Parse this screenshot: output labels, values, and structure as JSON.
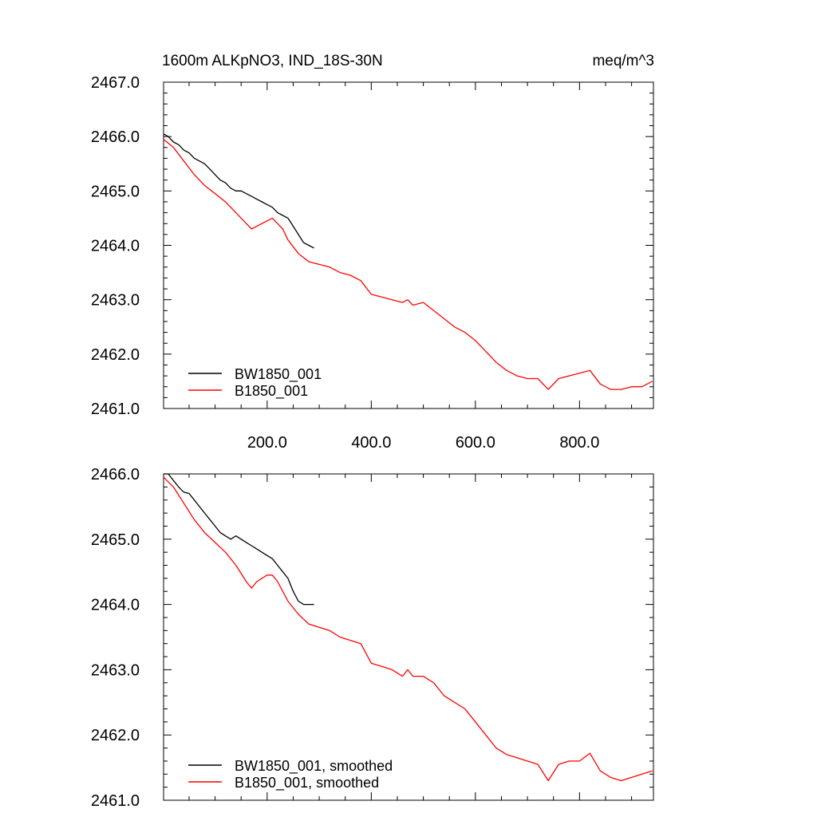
{
  "header": {
    "left": "1600m ALKpNO3, IND_18S-30N",
    "right": "meq/m^3"
  },
  "colors": {
    "bw": "#000000",
    "b": "#ff0000"
  },
  "chart_data": [
    {
      "type": "line",
      "title": "1600m ALKpNO3, IND_18S-30N",
      "units": "meq/m^3",
      "xlim": [
        1,
        942
      ],
      "ylim": [
        2461.0,
        2467.0
      ],
      "xticks": [
        200,
        400,
        600,
        800
      ],
      "xtick_labels": [
        "200.0",
        "400.0",
        "600.0",
        "800.0"
      ],
      "yticks": [
        2461,
        2462,
        2463,
        2464,
        2465,
        2466,
        2467
      ],
      "ytick_labels": [
        "2461.0",
        "2462.0",
        "2463.0",
        "2464.0",
        "2465.0",
        "2466.0",
        "2467.0"
      ],
      "legend_location": "bottom-left",
      "series": [
        {
          "name": "BW1850_001",
          "color": "#000000",
          "x": [
            1,
            10,
            20,
            30,
            40,
            50,
            60,
            70,
            80,
            90,
            100,
            110,
            120,
            130,
            140,
            150,
            160,
            170,
            180,
            190,
            200,
            210,
            220,
            230,
            240,
            250,
            260,
            270,
            280,
            290
          ],
          "y": [
            2466.05,
            2466.0,
            2465.9,
            2465.85,
            2465.75,
            2465.7,
            2465.6,
            2465.55,
            2465.5,
            2465.4,
            2465.3,
            2465.2,
            2465.15,
            2465.05,
            2465.0,
            2465.0,
            2464.95,
            2464.9,
            2464.85,
            2464.8,
            2464.75,
            2464.7,
            2464.6,
            2464.55,
            2464.5,
            2464.35,
            2464.2,
            2464.05,
            2464.0,
            2463.95
          ]
        },
        {
          "name": "B1850_001",
          "color": "#ff0000",
          "x": [
            1,
            20,
            40,
            60,
            80,
            100,
            120,
            140,
            160,
            170,
            180,
            190,
            200,
            210,
            220,
            230,
            240,
            260,
            280,
            300,
            320,
            340,
            360,
            380,
            400,
            420,
            440,
            460,
            470,
            480,
            500,
            520,
            540,
            560,
            580,
            600,
            620,
            640,
            660,
            680,
            700,
            720,
            740,
            760,
            780,
            800,
            820,
            840,
            860,
            880,
            900,
            920,
            940
          ],
          "y": [
            2465.95,
            2465.8,
            2465.55,
            2465.3,
            2465.1,
            2464.95,
            2464.8,
            2464.6,
            2464.4,
            2464.3,
            2464.35,
            2464.4,
            2464.45,
            2464.5,
            2464.4,
            2464.3,
            2464.1,
            2463.85,
            2463.7,
            2463.65,
            2463.6,
            2463.5,
            2463.45,
            2463.35,
            2463.1,
            2463.05,
            2463.0,
            2462.95,
            2463.0,
            2462.9,
            2462.95,
            2462.8,
            2462.65,
            2462.5,
            2462.4,
            2462.25,
            2462.05,
            2461.85,
            2461.7,
            2461.6,
            2461.55,
            2461.55,
            2461.35,
            2461.55,
            2461.6,
            2461.65,
            2461.7,
            2461.45,
            2461.35,
            2461.35,
            2461.4,
            2461.4,
            2461.5
          ]
        }
      ]
    },
    {
      "type": "line",
      "title": "",
      "xlim": [
        1,
        942
      ],
      "ylim": [
        2461.0,
        2466.0
      ],
      "xticks": [
        200,
        400,
        600,
        800
      ],
      "xtick_labels": [],
      "yticks": [
        2461,
        2462,
        2463,
        2464,
        2465,
        2466
      ],
      "ytick_labels": [
        "2461.0",
        "2462.0",
        "2463.0",
        "2464.0",
        "2465.0",
        "2466.0"
      ],
      "legend_location": "bottom-left",
      "series": [
        {
          "name": "BW1850_001, smoothed",
          "color": "#000000",
          "x": [
            1,
            10,
            20,
            30,
            40,
            50,
            60,
            70,
            80,
            90,
            100,
            110,
            120,
            130,
            140,
            150,
            160,
            170,
            180,
            190,
            200,
            210,
            220,
            230,
            240,
            250,
            260,
            270,
            280,
            290
          ],
          "y": [
            2466.0,
            2466.0,
            2465.9,
            2465.8,
            2465.72,
            2465.7,
            2465.6,
            2465.5,
            2465.4,
            2465.3,
            2465.2,
            2465.1,
            2465.05,
            2465.0,
            2465.05,
            2465.0,
            2464.95,
            2464.9,
            2464.85,
            2464.8,
            2464.75,
            2464.7,
            2464.6,
            2464.5,
            2464.4,
            2464.2,
            2464.05,
            2464.0,
            2464.0,
            2464.0
          ]
        },
        {
          "name": "B1850_001, smoothed",
          "color": "#ff0000",
          "x": [
            1,
            20,
            40,
            60,
            80,
            100,
            120,
            140,
            160,
            170,
            180,
            190,
            200,
            210,
            220,
            230,
            240,
            260,
            280,
            300,
            320,
            340,
            360,
            380,
            400,
            420,
            440,
            460,
            470,
            480,
            500,
            520,
            540,
            560,
            580,
            600,
            620,
            640,
            660,
            680,
            700,
            720,
            740,
            760,
            780,
            800,
            820,
            840,
            860,
            880,
            900,
            920,
            940
          ],
          "y": [
            2465.95,
            2465.8,
            2465.55,
            2465.3,
            2465.1,
            2464.95,
            2464.8,
            2464.6,
            2464.35,
            2464.25,
            2464.35,
            2464.4,
            2464.45,
            2464.45,
            2464.35,
            2464.2,
            2464.05,
            2463.85,
            2463.7,
            2463.65,
            2463.6,
            2463.5,
            2463.45,
            2463.4,
            2463.1,
            2463.05,
            2463.0,
            2462.9,
            2463.0,
            2462.9,
            2462.9,
            2462.8,
            2462.6,
            2462.5,
            2462.4,
            2462.2,
            2462.0,
            2461.8,
            2461.7,
            2461.65,
            2461.6,
            2461.55,
            2461.3,
            2461.55,
            2461.6,
            2461.6,
            2461.72,
            2461.45,
            2461.35,
            2461.3,
            2461.35,
            2461.4,
            2461.45
          ]
        }
      ]
    }
  ]
}
